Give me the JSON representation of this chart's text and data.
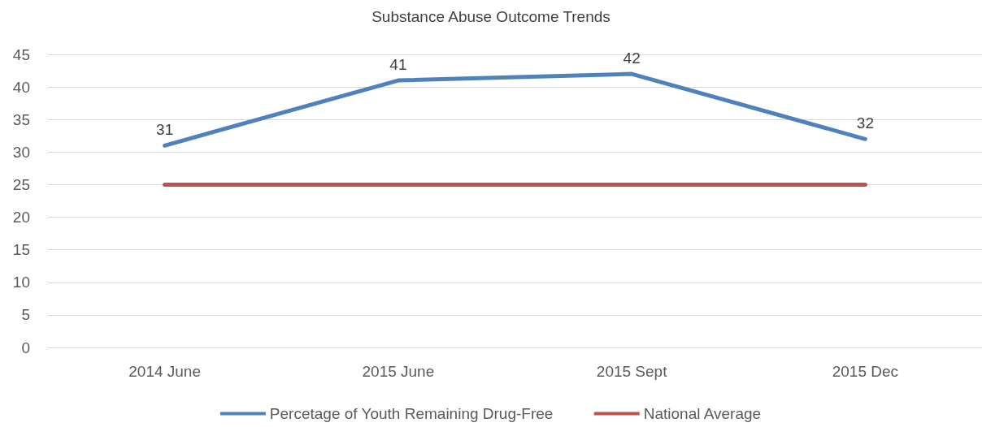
{
  "chart_data": {
    "type": "line",
    "title": "Substance Abuse Outcome Trends",
    "categories": [
      "2014 June",
      "2015 June",
      "2015 Sept",
      "2015 Dec"
    ],
    "series": [
      {
        "name": "Percetage of Youth Remaining Drug-Free",
        "color": "#4f81bd",
        "values": [
          31,
          41,
          42,
          32
        ],
        "value_labels": [
          "31",
          "41",
          "42",
          "32"
        ]
      },
      {
        "name": "National Average",
        "color": "#c0504d",
        "values": [
          25,
          25,
          25,
          25
        ]
      }
    ],
    "ylim": [
      0,
      45
    ],
    "yticks": [
      0,
      5,
      10,
      15,
      20,
      25,
      30,
      35,
      40,
      45
    ],
    "grid": "y",
    "legend": "bottom",
    "marker": "none",
    "line_style": "solid"
  }
}
